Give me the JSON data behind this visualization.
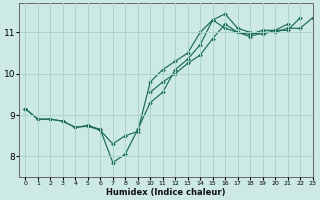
{
  "xlabel": "Humidex (Indice chaleur)",
  "ylabel": "",
  "bg_color": "#cce9e3",
  "grid_color": "#aad4cc",
  "line_color": "#1a6b5a",
  "xlim": [
    -0.5,
    23
  ],
  "ylim": [
    7.5,
    11.7
  ],
  "yticks": [
    8,
    9,
    10,
    11
  ],
  "xticks": [
    0,
    1,
    2,
    3,
    4,
    5,
    6,
    7,
    8,
    9,
    10,
    11,
    12,
    13,
    14,
    15,
    16,
    17,
    18,
    19,
    20,
    21,
    22,
    23
  ],
  "series": [
    [
      9.15,
      8.9,
      8.9,
      8.85,
      8.7,
      8.75,
      8.65,
      7.85,
      8.05,
      8.65,
      9.3,
      9.55,
      10.1,
      10.35,
      10.7,
      11.3,
      11.45,
      11.1,
      11.0,
      10.95,
      11.05,
      11.05,
      11.35,
      null
    ],
    [
      9.15,
      8.9,
      8.9,
      8.85,
      8.7,
      8.73,
      8.63,
      8.3,
      8.5,
      8.6,
      9.8,
      10.1,
      10.3,
      10.5,
      11.0,
      11.3,
      11.1,
      11.0,
      10.95,
      11.05,
      11.05,
      11.2,
      null,
      null
    ],
    [
      9.15,
      null,
      null,
      null,
      null,
      null,
      null,
      null,
      null,
      null,
      9.55,
      9.8,
      10.0,
      10.25,
      10.45,
      10.85,
      11.2,
      11.0,
      10.9,
      11.0,
      11.0,
      11.1,
      11.1,
      11.35
    ]
  ]
}
